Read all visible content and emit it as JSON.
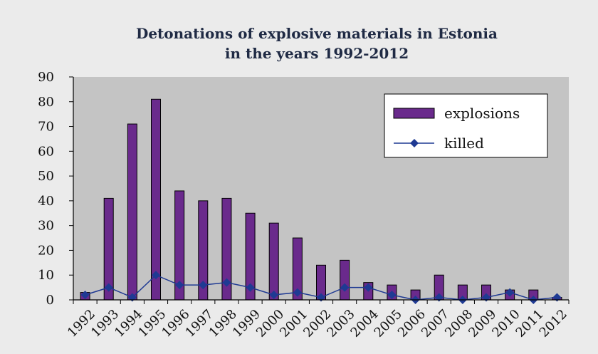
{
  "chart_data": {
    "type": "bar",
    "title_lines": [
      "Detonations of explosive materials in Estonia",
      "in the years 1992-2012"
    ],
    "categories": [
      "1992",
      "1993",
      "1994",
      "1995",
      "1996",
      "1997",
      "1998",
      "1999",
      "2000",
      "2001",
      "2002",
      "2003",
      "2004",
      "2005",
      "2006",
      "2007",
      "2008",
      "2009",
      "2010",
      "2011",
      "2012"
    ],
    "series": [
      {
        "name": "explosions",
        "type": "bar",
        "color": "#6a2a8c",
        "values": [
          3,
          41,
          71,
          81,
          44,
          40,
          41,
          35,
          31,
          25,
          14,
          16,
          7,
          6,
          4,
          10,
          6,
          6,
          4,
          4,
          1
        ]
      },
      {
        "name": "killed",
        "type": "line",
        "color": "#1f3a93",
        "values": [
          2,
          5,
          1,
          10,
          6,
          6,
          7,
          5,
          2,
          3,
          1,
          5,
          5,
          2,
          0,
          1,
          0,
          1,
          3,
          0,
          1
        ]
      }
    ],
    "yticks": [
      "0",
      "10",
      "20",
      "30",
      "40",
      "50",
      "60",
      "70",
      "80",
      "90"
    ],
    "ylim": [
      0,
      90
    ],
    "grid": false,
    "legend_position": "top-right",
    "plot_background": "#c4c4c4",
    "page_background": "#ebebeb"
  }
}
